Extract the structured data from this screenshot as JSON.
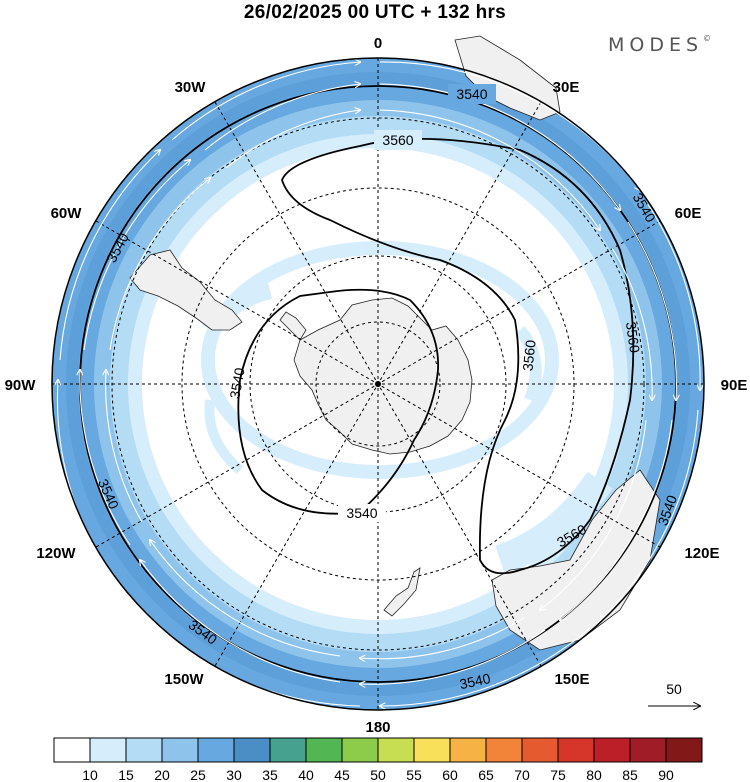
{
  "header": {
    "title": "26/02/2025  00 UTC  + 132 hrs",
    "brand": "MODES",
    "brand_mark": "©"
  },
  "map": {
    "projection": "south polar stereographic",
    "longitude_labels": {
      "top": "0",
      "bottom": "180",
      "w30": "30W",
      "w60": "60W",
      "w90": "90W",
      "w120": "120W",
      "w150": "150W",
      "e30": "30E",
      "e60": "60E",
      "e90": "90E",
      "e120": "120E",
      "e150": "150E"
    },
    "contour_labels": {
      "inner_top": "3540",
      "inner_bottom": "3540",
      "inner_left": "3540",
      "outer_top": "3540",
      "outer_left": "3540",
      "outer_left_low": "3540",
      "outer_bottom_left": "3540",
      "outer_bottom": "3540",
      "outer_right": "3540",
      "outer_right_top": "3540",
      "lobe_top": "3560",
      "lobe_inner": "3560",
      "lobe_right": "3560",
      "lobe_bottom": "3560"
    },
    "reference_vector": "50"
  },
  "colorbar": {
    "ticks": [
      "10",
      "15",
      "20",
      "25",
      "30",
      "35",
      "40",
      "45",
      "50",
      "55",
      "60",
      "65",
      "70",
      "75",
      "80",
      "85",
      "90"
    ],
    "colors": [
      "#ffffff",
      "#d6eefc",
      "#b4dcf5",
      "#8ec4ec",
      "#66a8df",
      "#4b8ec6",
      "#46a28f",
      "#52b652",
      "#8ccc4a",
      "#c8de52",
      "#f8e05a",
      "#f6b244",
      "#f2843a",
      "#e65a30",
      "#d6352a",
      "#bc1f28",
      "#a01c26",
      "#821818"
    ]
  }
}
